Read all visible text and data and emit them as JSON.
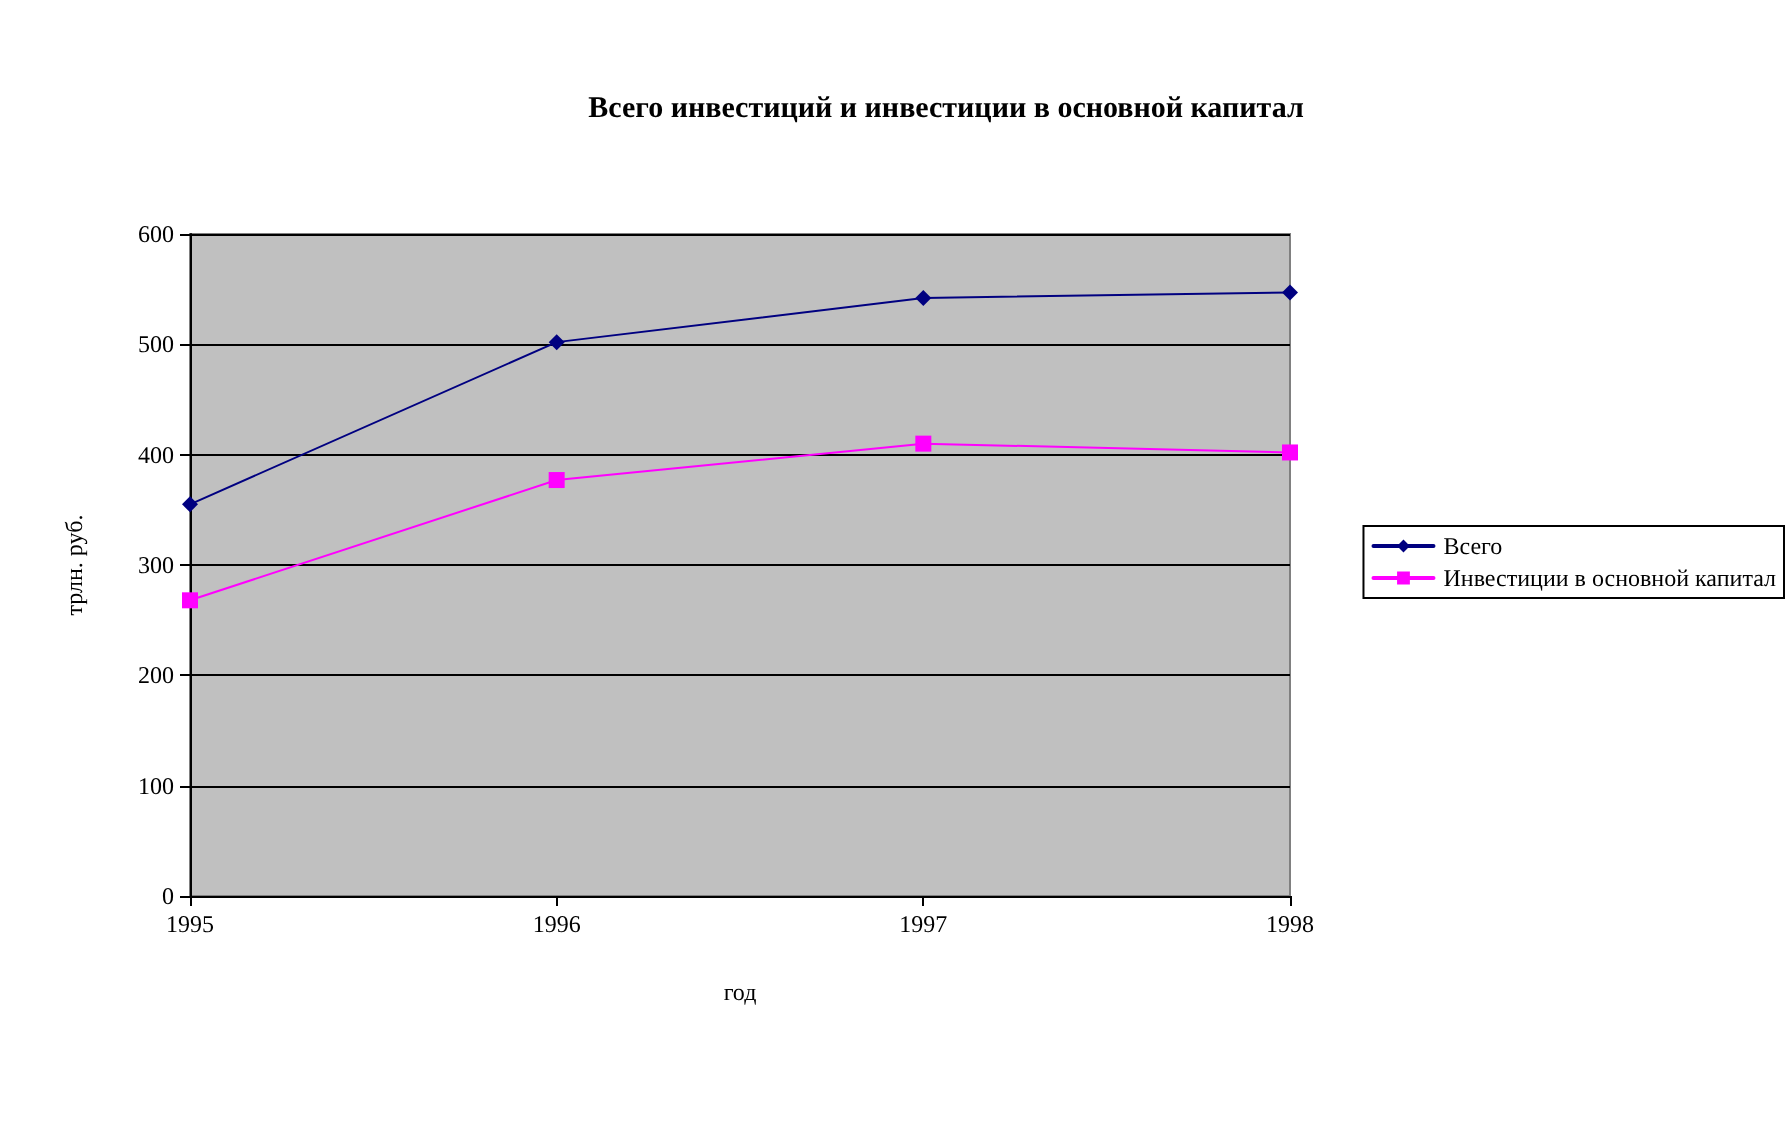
{
  "chart_data": {
    "type": "line",
    "title": "Всего инвестиций и инвестиции в основной капитал",
    "xlabel": "год",
    "ylabel": "трлн. руб.",
    "x": [
      1995,
      1996,
      1997,
      1998
    ],
    "xlim": [
      1995,
      1998
    ],
    "xticks": [
      1995,
      1996,
      1997,
      1998
    ],
    "ylim": [
      0,
      600
    ],
    "yticks": [
      0,
      100,
      200,
      300,
      400,
      500,
      600
    ],
    "series": [
      {
        "name": "Всего",
        "color": "#000080",
        "marker": "diamond",
        "values": [
          355,
          502,
          542,
          547
        ]
      },
      {
        "name": "Инвестиции в основной капитал",
        "color": "#ff00ff",
        "marker": "square",
        "values": [
          268,
          377,
          410,
          402
        ]
      }
    ],
    "grid": "y",
    "legend": "right",
    "line_style": "solid"
  }
}
